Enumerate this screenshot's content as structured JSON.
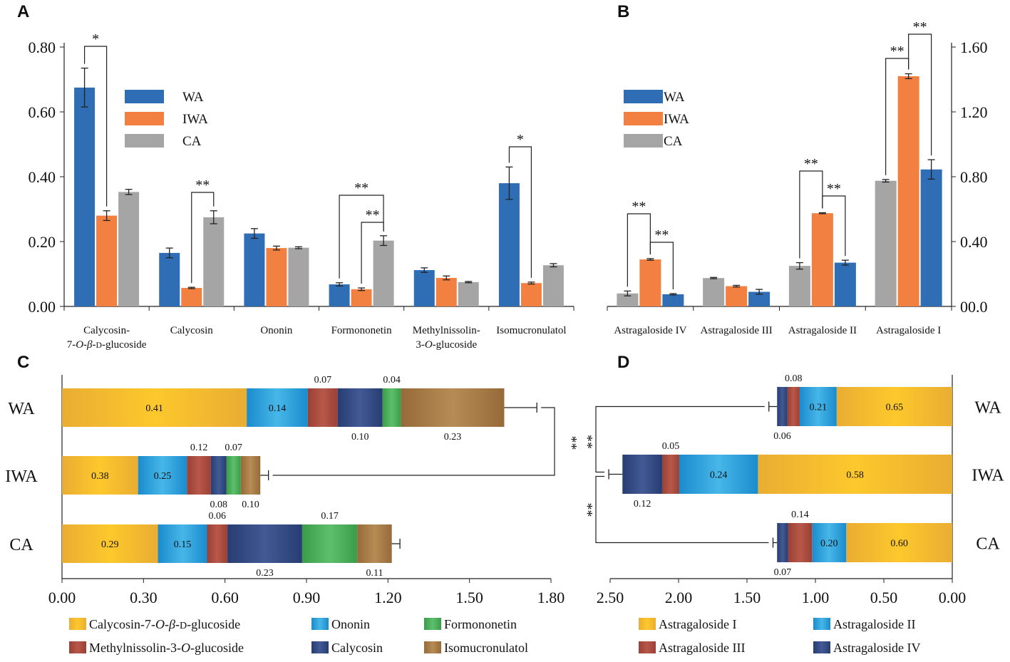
{
  "colors": {
    "WA": "#2f6db5",
    "IWA": "#f28141",
    "CA": "#a5a5a5",
    "Calycosin-7-O-β-D-glucoside": "#f9c22c",
    "Ononin": "#1f9bd7",
    "Formononetin": "#46ab56",
    "Methylnissolin-3-O-glucoside": "#a74a3e",
    "Calycosin": "#2f4780",
    "Isomucronulatol": "#a87843",
    "Astragaloside I": "#f9c22c",
    "Astragaloside II": "#1f9bd7",
    "Astragaloside III": "#a74a3e",
    "Astragaloside IV": "#2f4780"
  },
  "chart_data": [
    {
      "panel": "A",
      "type": "bar",
      "categories": [
        "Calycosin-7-O-β-D-glucoside",
        "Calycosin",
        "Ononin",
        "Formononetin",
        "Methylnissolin-3-O-glucoside",
        "Isomucronulatol"
      ],
      "category_label_lines": [
        [
          "Calycosin-",
          "7-O-β-D-glucoside"
        ],
        [
          "Calycosin"
        ],
        [
          "Ononin"
        ],
        [
          "Formononetin"
        ],
        [
          "Methylnissolin-",
          "3-O-glucoside"
        ],
        [
          "Isomucronulatol"
        ]
      ],
      "series": [
        {
          "name": "WA",
          "values": [
            0.675,
            0.165,
            0.225,
            0.068,
            0.112,
            0.38
          ],
          "errors": [
            0.06,
            0.015,
            0.015,
            0.005,
            0.007,
            0.05
          ]
        },
        {
          "name": "IWA",
          "values": [
            0.28,
            0.057,
            0.18,
            0.053,
            0.088,
            0.072
          ],
          "errors": [
            0.015,
            0.002,
            0.006,
            0.004,
            0.006,
            0.003
          ]
        },
        {
          "name": "CA",
          "values": [
            0.353,
            0.275,
            0.181,
            0.203,
            0.075,
            0.127
          ],
          "errors": [
            0.008,
            0.02,
            0.003,
            0.015,
            0.002,
            0.005
          ]
        }
      ],
      "yticks": [
        "0.00",
        "0.20",
        "0.40",
        "0.60",
        "0.80"
      ],
      "ylim": [
        0,
        0.8
      ],
      "legend": [
        "WA",
        "IWA",
        "CA"
      ],
      "legend_position": "top-left",
      "significance": [
        {
          "category": 0,
          "from": "WA",
          "to": "IWA",
          "label": "*"
        },
        {
          "category": 1,
          "from": "IWA",
          "to": "CA",
          "label": "**"
        },
        {
          "category": 3,
          "from": "IWA",
          "to": "CA",
          "label": "**"
        },
        {
          "category": 3,
          "from": "WA",
          "to": "CA",
          "label": "**"
        },
        {
          "category": 5,
          "from": "WA",
          "to": "IWA",
          "label": "*"
        }
      ]
    },
    {
      "panel": "B",
      "type": "bar",
      "categories": [
        "Astragaloside IV",
        "Astragaloside III",
        "Astragaloside II",
        "Astragaloside I"
      ],
      "bar_order": [
        "CA",
        "IWA",
        "WA"
      ],
      "series": [
        {
          "name": "CA",
          "values": [
            0.08,
            0.175,
            0.25,
            0.775
          ],
          "errors": [
            0.015,
            0.004,
            0.02,
            0.008
          ]
        },
        {
          "name": "IWA",
          "values": [
            0.29,
            0.125,
            0.575,
            1.42
          ],
          "errors": [
            0.005,
            0.005,
            0.003,
            0.015
          ]
        },
        {
          "name": "WA",
          "values": [
            0.075,
            0.09,
            0.27,
            0.845
          ],
          "errors": [
            0.004,
            0.015,
            0.015,
            0.06
          ]
        }
      ],
      "yticks": [
        "00.0",
        "0.40",
        "0.80",
        "1.20",
        "1.60"
      ],
      "ylim": [
        0,
        1.6
      ],
      "legend": [
        "WA",
        "IWA",
        "CA"
      ],
      "legend_position": "top-left",
      "significance": [
        {
          "category": 0,
          "from": "CA",
          "to": "IWA",
          "label": "**"
        },
        {
          "category": 0,
          "from": "IWA",
          "to": "WA",
          "label": "**"
        },
        {
          "category": 2,
          "from": "CA",
          "to": "IWA",
          "label": "**"
        },
        {
          "category": 2,
          "from": "IWA",
          "to": "WA",
          "label": "**"
        },
        {
          "category": 3,
          "from": "CA",
          "to": "IWA",
          "label": "**"
        },
        {
          "category": 3,
          "from": "IWA",
          "to": "WA",
          "label": "**"
        }
      ]
    },
    {
      "panel": "C",
      "type": "stacked-horizontal-bar",
      "groups": [
        "WA",
        "IWA",
        "CA"
      ],
      "components": [
        "Calycosin-7-O-β-D-glucoside",
        "Ononin",
        "Methylnissolin-3-O-glucoside",
        "Calycosin",
        "Formononetin",
        "Isomucronulatol"
      ],
      "values": {
        "WA": [
          0.68,
          0.225,
          0.11,
          0.165,
          0.068,
          0.38
        ],
        "IWA": [
          0.28,
          0.18,
          0.088,
          0.057,
          0.053,
          0.072
        ],
        "CA": [
          0.353,
          0.181,
          0.075,
          0.275,
          0.203,
          0.127
        ]
      },
      "errors": {
        "WA": 0.12,
        "IWA": 0.03,
        "CA": 0.03
      },
      "labels": {
        "WA": [
          {
            "component": 0,
            "text": "0.41",
            "pos": "inside"
          },
          {
            "component": 1,
            "text": "0.14",
            "pos": "inside"
          },
          {
            "component": 2,
            "text": "0.07",
            "pos": "above"
          },
          {
            "component": 3,
            "text": "0.10",
            "pos": "below"
          },
          {
            "component": 4,
            "text": "0.04",
            "pos": "above"
          },
          {
            "component": 5,
            "text": "0.23",
            "pos": "below"
          }
        ],
        "IWA": [
          {
            "component": 0,
            "text": "0.38",
            "pos": "inside"
          },
          {
            "component": 1,
            "text": "0.25",
            "pos": "inside"
          },
          {
            "component": 2,
            "text": "0.12",
            "pos": "above"
          },
          {
            "component": 3,
            "text": "0.08",
            "pos": "below"
          },
          {
            "component": 4,
            "text": "0.07",
            "pos": "above"
          },
          {
            "component": 5,
            "text": "0.10",
            "pos": "below"
          }
        ],
        "CA": [
          {
            "component": 0,
            "text": "0.29",
            "pos": "inside"
          },
          {
            "component": 1,
            "text": "0.15",
            "pos": "inside"
          },
          {
            "component": 2,
            "text": "0.06",
            "pos": "above"
          },
          {
            "component": 3,
            "text": "0.23",
            "pos": "below"
          },
          {
            "component": 4,
            "text": "0.17",
            "pos": "above"
          },
          {
            "component": 5,
            "text": "0.11",
            "pos": "below"
          }
        ]
      },
      "xticks": [
        "0.00",
        "0.30",
        "0.60",
        "0.90",
        "1.20",
        "1.50",
        "1.80"
      ],
      "xlim": [
        0,
        1.8
      ],
      "significance": [
        {
          "from": "WA",
          "to": "IWA",
          "label": "**"
        }
      ],
      "legend": [
        "Calycosin-7-O-β-D-glucoside",
        "Ononin",
        "Formononetin",
        "Methylnissolin-3-O-glucoside",
        "Calycosin",
        "Isomucronulatol"
      ]
    },
    {
      "panel": "D",
      "type": "stacked-horizontal-bar",
      "orientation": "reversed",
      "groups": [
        "WA",
        "IWA",
        "CA"
      ],
      "components": [
        "Astragaloside I",
        "Astragaloside II",
        "Astragaloside III",
        "Astragaloside IV"
      ],
      "values": {
        "WA": [
          0.845,
          0.27,
          0.09,
          0.075
        ],
        "IWA": [
          1.42,
          0.575,
          0.125,
          0.29
        ],
        "CA": [
          0.775,
          0.25,
          0.175,
          0.08
        ]
      },
      "errors": {
        "WA": 0.06,
        "IWA": 0.1,
        "CA": 0.03
      },
      "labels": {
        "WA": [
          {
            "component": 0,
            "text": "0.65",
            "pos": "inside"
          },
          {
            "component": 1,
            "text": "0.21",
            "pos": "inside"
          },
          {
            "component": 2,
            "text": "0.08",
            "pos": "above"
          },
          {
            "component": 3,
            "text": "0.06",
            "pos": "below"
          }
        ],
        "IWA": [
          {
            "component": 0,
            "text": "0.58",
            "pos": "inside"
          },
          {
            "component": 1,
            "text": "0.24",
            "pos": "inside"
          },
          {
            "component": 2,
            "text": "0.05",
            "pos": "above"
          },
          {
            "component": 3,
            "text": "0.12",
            "pos": "below"
          }
        ],
        "CA": [
          {
            "component": 0,
            "text": "0.60",
            "pos": "inside"
          },
          {
            "component": 1,
            "text": "0.20",
            "pos": "inside"
          },
          {
            "component": 2,
            "text": "0.14",
            "pos": "above"
          },
          {
            "component": 3,
            "text": "0.07",
            "pos": "below"
          }
        ]
      },
      "xticks": [
        "0.00",
        "0.50",
        "1.00",
        "1.50",
        "2.00",
        "2.50"
      ],
      "xlim": [
        0,
        2.5
      ],
      "significance": [
        {
          "from": "WA",
          "to": "IWA",
          "label": "**"
        },
        {
          "from": "IWA",
          "to": "CA",
          "label": "**"
        }
      ],
      "legend": [
        "Astragaloside I",
        "Astragaloside II",
        "Astragaloside III",
        "Astragaloside IV"
      ]
    }
  ]
}
